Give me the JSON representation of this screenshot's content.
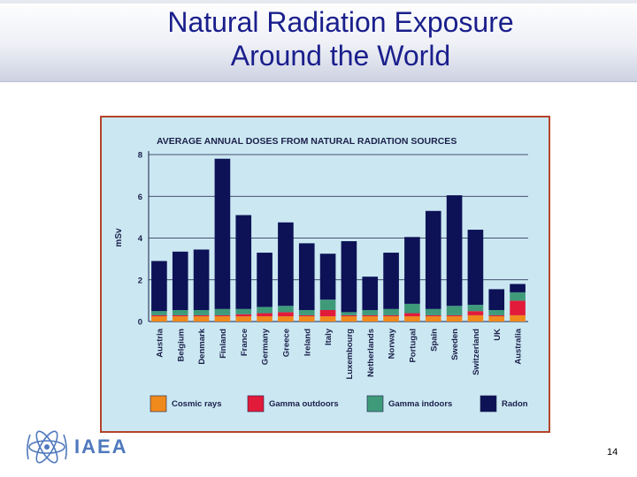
{
  "slide": {
    "title_line1": "Natural Radiation Exposure",
    "title_line2": "Around the World",
    "logo_text": "IAEA",
    "slide_number": "14"
  },
  "colors": {
    "cosmic": "#f08a1c",
    "gamma_outdoors": "#e21b3a",
    "gamma_indoors": "#3f9a7a",
    "radon": "#0d1257",
    "title": "#1a1f8c"
  },
  "chart_data": {
    "type": "bar",
    "stacked": true,
    "title": "AVERAGE ANNUAL DOSES FROM NATURAL RADIATION SOURCES",
    "ylabel": "mSv",
    "xlabel": "",
    "ylim": [
      0,
      8
    ],
    "yticks": [
      "0",
      "2",
      "4",
      "6",
      "8"
    ],
    "legend_position": "bottom",
    "categories": [
      "Austria",
      "Belgium",
      "Denmark",
      "Finland",
      "France",
      "Germany",
      "Greece",
      "Ireland",
      "Italy",
      "Luxembourg",
      "Netherlands",
      "Norway",
      "Portugal",
      "Spain",
      "Sweden",
      "Switzerland",
      "UK",
      "Australia"
    ],
    "series": [
      {
        "name": "Cosmic rays",
        "color_key": "cosmic",
        "values": [
          0.25,
          0.25,
          0.25,
          0.25,
          0.25,
          0.25,
          0.25,
          0.25,
          0.25,
          0.25,
          0.25,
          0.25,
          0.25,
          0.25,
          0.25,
          0.3,
          0.25,
          0.3
        ]
      },
      {
        "name": "Gamma outdoors",
        "color_key": "gamma_outdoors",
        "values": [
          0.05,
          0.05,
          0.05,
          0.05,
          0.1,
          0.15,
          0.2,
          0.05,
          0.3,
          0.05,
          0.05,
          0.05,
          0.15,
          0.05,
          0.05,
          0.2,
          0.05,
          0.7
        ]
      },
      {
        "name": "Gamma indoors",
        "color_key": "gamma_indoors",
        "values": [
          0.2,
          0.25,
          0.25,
          0.3,
          0.25,
          0.3,
          0.3,
          0.25,
          0.5,
          0.15,
          0.25,
          0.3,
          0.45,
          0.3,
          0.45,
          0.3,
          0.25,
          0.4
        ]
      },
      {
        "name": "Radon",
        "color_key": "radon",
        "values": [
          2.4,
          2.8,
          2.9,
          7.2,
          4.5,
          2.6,
          4.0,
          3.2,
          2.2,
          3.4,
          1.6,
          2.7,
          3.2,
          4.7,
          5.3,
          3.6,
          1.0,
          0.4
        ]
      }
    ]
  }
}
